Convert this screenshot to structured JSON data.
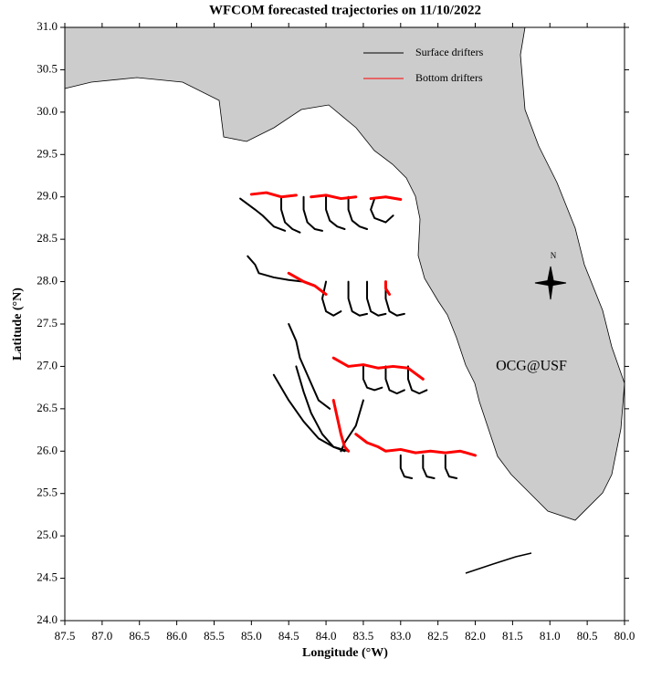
{
  "chart_data": {
    "type": "map",
    "title": "WFCOM forecasted trajectories on 11/10/2022",
    "xlabel": "Longitude (°W)",
    "ylabel": "Latitude (°N)",
    "xlim": [
      87.5,
      80.0
    ],
    "ylim": [
      24.0,
      31.0
    ],
    "xticks": [
      87.5,
      {
        "value": 87,
        "label": "87.0"
      },
      86.5,
      {
        "value": 86,
        "label": "86.0"
      },
      85.5,
      {
        "value": 85,
        "label": "85.0"
      },
      84.5,
      {
        "value": 84,
        "label": "84.0"
      },
      83.5,
      {
        "value": 83,
        "label": "83.0"
      },
      82.5,
      {
        "value": 82,
        "label": "82.0"
      },
      81.5,
      {
        "value": 81,
        "label": "81.0"
      },
      80.5,
      {
        "value": 80,
        "label": "80.0"
      }
    ],
    "yticks": [
      {
        "value": 24,
        "label": "24.0"
      },
      24.5,
      {
        "value": 25,
        "label": "25.0"
      },
      25.5,
      {
        "value": 26,
        "label": "26.0"
      },
      26.5,
      {
        "value": 27,
        "label": "27.0"
      },
      27.5,
      {
        "value": 28,
        "label": "28.0"
      },
      28.5,
      {
        "value": 29,
        "label": "29.0"
      },
      29.5,
      {
        "value": 30,
        "label": "30.0"
      },
      30.5,
      {
        "value": 31,
        "label": "31.0"
      }
    ],
    "annotation": "OCG@USF",
    "compass_label": "N",
    "series": [
      {
        "name": "Surface drifters",
        "color": "#000000",
        "tracks": [
          {
            "x": [
              85.15,
              84.95,
              84.85,
              84.7,
              84.55
            ],
            "y": [
              28.98,
              28.85,
              28.78,
              28.65,
              28.6
            ]
          },
          {
            "x": [
              84.6,
              84.6,
              84.55,
              84.45,
              84.35
            ],
            "y": [
              29.0,
              28.85,
              28.7,
              28.62,
              28.58
            ]
          },
          {
            "x": [
              84.3,
              84.3,
              84.25,
              84.15,
              84.05
            ],
            "y": [
              29.0,
              28.85,
              28.7,
              28.62,
              28.6
            ]
          },
          {
            "x": [
              84.0,
              84.0,
              83.95,
              83.85,
              83.75
            ],
            "y": [
              29.0,
              28.85,
              28.72,
              28.65,
              28.62
            ]
          },
          {
            "x": [
              83.7,
              83.7,
              83.65,
              83.55,
              83.45
            ],
            "y": [
              29.0,
              28.85,
              28.72,
              28.65,
              28.62
            ]
          },
          {
            "x": [
              83.35,
              83.4,
              83.35,
              83.2,
              83.1
            ],
            "y": [
              28.98,
              28.85,
              28.75,
              28.7,
              28.78
            ]
          },
          {
            "x": [
              85.05,
              84.95,
              84.9,
              84.7,
              84.5,
              84.3
            ],
            "y": [
              28.3,
              28.2,
              28.1,
              28.05,
              28.02,
              28.0
            ]
          },
          {
            "x": [
              84.0,
              84.05,
              84.0,
              83.9,
              83.8
            ],
            "y": [
              28.0,
              27.8,
              27.65,
              27.6,
              27.65
            ]
          },
          {
            "x": [
              83.7,
              83.7,
              83.65,
              83.55,
              83.45
            ],
            "y": [
              28.0,
              27.8,
              27.65,
              27.6,
              27.62
            ]
          },
          {
            "x": [
              83.45,
              83.45,
              83.4,
              83.3,
              83.2
            ],
            "y": [
              28.0,
              27.8,
              27.65,
              27.6,
              27.62
            ]
          },
          {
            "x": [
              83.2,
              83.2,
              83.15,
              83.05,
              82.95
            ],
            "y": [
              28.0,
              27.8,
              27.65,
              27.6,
              27.62
            ]
          },
          {
            "x": [
              84.5,
              84.4,
              84.35,
              84.2,
              84.1,
              83.95
            ],
            "y": [
              27.5,
              27.3,
              27.1,
              26.8,
              26.6,
              26.5
            ]
          },
          {
            "x": [
              83.5,
              83.5,
              83.45,
              83.35,
              83.25
            ],
            "y": [
              27.0,
              26.85,
              26.75,
              26.72,
              26.75
            ]
          },
          {
            "x": [
              83.2,
              83.2,
              83.15,
              83.05,
              82.95
            ],
            "y": [
              27.0,
              26.85,
              26.72,
              26.68,
              26.72
            ]
          },
          {
            "x": [
              82.9,
              82.9,
              82.85,
              82.75,
              82.65
            ],
            "y": [
              27.0,
              26.85,
              26.72,
              26.68,
              26.72
            ]
          },
          {
            "x": [
              84.7,
              84.5,
              84.3,
              84.1,
              83.9,
              83.7
            ],
            "y": [
              26.9,
              26.6,
              26.35,
              26.15,
              26.05,
              26.0
            ]
          },
          {
            "x": [
              84.4,
              84.3,
              84.2,
              84.05,
              83.9,
              83.75
            ],
            "y": [
              27.0,
              26.7,
              26.45,
              26.2,
              26.05,
              26.0
            ]
          },
          {
            "x": [
              83.5,
              83.6,
              83.75,
              83.8
            ],
            "y": [
              26.6,
              26.3,
              26.1,
              26.0
            ]
          },
          {
            "x": [
              83.0,
              83.0,
              82.95,
              82.85
            ],
            "y": [
              25.95,
              25.8,
              25.7,
              25.68
            ]
          },
          {
            "x": [
              82.7,
              82.7,
              82.65,
              82.55
            ],
            "y": [
              25.95,
              25.8,
              25.7,
              25.68
            ]
          },
          {
            "x": [
              82.4,
              82.4,
              82.35,
              82.25
            ],
            "y": [
              25.95,
              25.8,
              25.7,
              25.68
            ]
          }
        ]
      },
      {
        "name": "Bottom drifters",
        "color": "#ff0000",
        "tracks": [
          {
            "x": [
              85.0,
              84.8,
              84.6,
              84.4
            ],
            "y": [
              29.03,
              29.05,
              29.0,
              29.02
            ]
          },
          {
            "x": [
              84.2,
              84.0,
              83.8,
              83.6
            ],
            "y": [
              29.0,
              29.02,
              28.98,
              29.0
            ]
          },
          {
            "x": [
              83.4,
              83.2,
              83.0
            ],
            "y": [
              28.98,
              29.0,
              28.97
            ]
          },
          {
            "x": [
              84.5,
              84.3,
              84.15,
              84.0
            ],
            "y": [
              28.1,
              28.0,
              27.95,
              27.85
            ]
          },
          {
            "x": [
              83.2,
              83.2,
              83.15
            ],
            "y": [
              28.0,
              27.92,
              27.85
            ]
          },
          {
            "x": [
              83.9,
              83.7,
              83.5,
              83.3,
              83.1,
              82.9,
              82.7
            ],
            "y": [
              27.1,
              27.0,
              27.02,
              26.98,
              27.0,
              26.98,
              26.85
            ]
          },
          {
            "x": [
              83.9,
              83.85,
              83.8,
              83.75,
              83.7
            ],
            "y": [
              26.6,
              26.4,
              26.2,
              26.05,
              26.0
            ]
          },
          {
            "x": [
              83.6,
              83.45,
              83.3,
              83.2,
              83.0,
              82.8,
              82.6,
              82.4,
              82.2,
              82.0
            ],
            "y": [
              26.2,
              26.1,
              26.05,
              26.0,
              26.02,
              25.98,
              26.0,
              25.98,
              26.0,
              25.95
            ]
          }
        ]
      }
    ]
  }
}
